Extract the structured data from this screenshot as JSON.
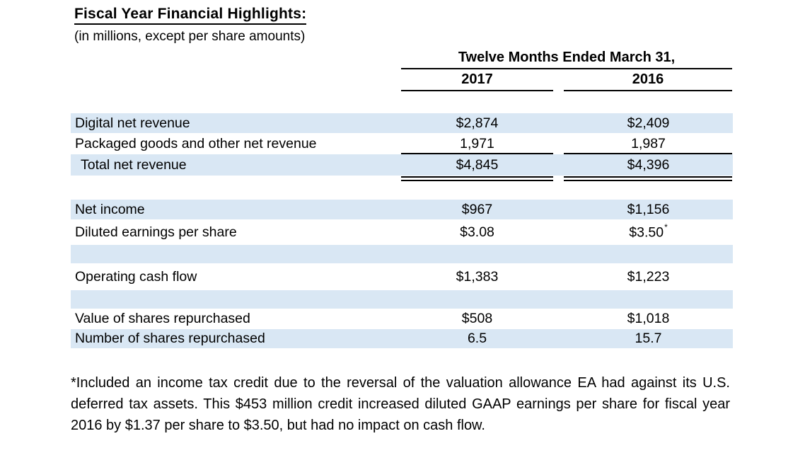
{
  "page": {
    "title": "Fiscal Year Financial Highlights:",
    "subtitle": "(in millions, except per share amounts)"
  },
  "table": {
    "period_header": "Twelve Months Ended March 31,",
    "columns": [
      "2017",
      "2016"
    ],
    "rows": [
      {
        "label": "Digital net revenue",
        "y2017": "$2,874",
        "y2016": "$2,409"
      },
      {
        "label": "Packaged goods and other net revenue",
        "y2017": "1,971",
        "y2016": "1,987"
      },
      {
        "label": "Total net revenue",
        "y2017": "$4,845",
        "y2016": "$4,396"
      },
      {
        "label": "Net income",
        "y2017": "$967",
        "y2016": "$1,156"
      },
      {
        "label": "Diluted earnings per share",
        "y2017": "$3.08",
        "y2016": "$3.50",
        "y2016_footnote_marker": "*"
      },
      {
        "label": "Operating cash flow",
        "y2017": "$1,383",
        "y2016": "$1,223"
      },
      {
        "label": "Value of shares repurchased",
        "y2017": "$508",
        "y2016": "$1,018"
      },
      {
        "label": "Number of shares repurchased",
        "y2017": "6.5",
        "y2016": "15.7"
      }
    ]
  },
  "footnote": {
    "text": "*Included an income tax credit due to the reversal of the valuation allowance EA had against its U.S. deferred tax assets. This $453 million credit increased diluted GAAP earnings per share for fiscal year 2016 by $1.37 per share to $3.50, but had no impact on cash flow."
  },
  "colors": {
    "row_highlight": "#d9e7f4",
    "text": "#000000"
  }
}
